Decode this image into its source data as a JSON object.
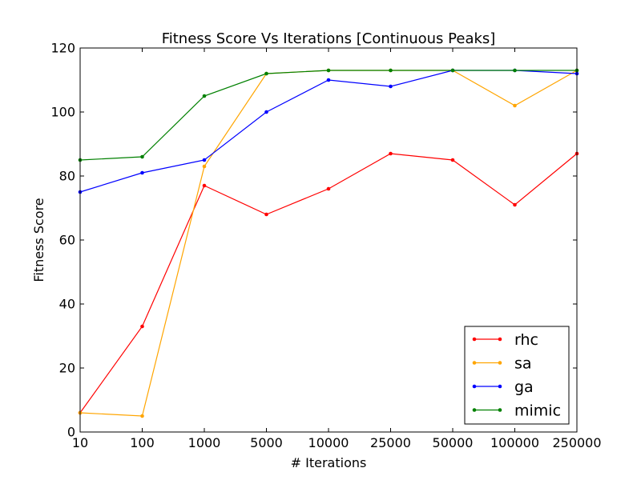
{
  "chart_data": {
    "type": "line",
    "title": "Fitness Score Vs Iterations [Continuous Peaks]",
    "xlabel": "# Iterations",
    "ylabel": "Fitness Score",
    "x_scale": "categorical",
    "categories": [
      "10",
      "100",
      "1000",
      "5000",
      "10000",
      "25000",
      "50000",
      "100000",
      "250000"
    ],
    "ylim": [
      0,
      120
    ],
    "yticks": [
      0,
      20,
      40,
      60,
      80,
      100,
      120
    ],
    "grid": false,
    "legend_position": "lower right",
    "marker": "dot",
    "series": [
      {
        "name": "rhc",
        "color": "#ff0000",
        "values": [
          6,
          33,
          77,
          68,
          76,
          87,
          85,
          71,
          87
        ]
      },
      {
        "name": "sa",
        "color": "#ffa500",
        "values": [
          6,
          5,
          83,
          112,
          113,
          113,
          113,
          102,
          113
        ]
      },
      {
        "name": "ga",
        "color": "#0000ff",
        "values": [
          75,
          81,
          85,
          100,
          110,
          108,
          113,
          113,
          112
        ]
      },
      {
        "name": "mimic",
        "color": "#008000",
        "values": [
          85,
          86,
          105,
          112,
          113,
          113,
          113,
          113,
          113
        ]
      }
    ]
  }
}
